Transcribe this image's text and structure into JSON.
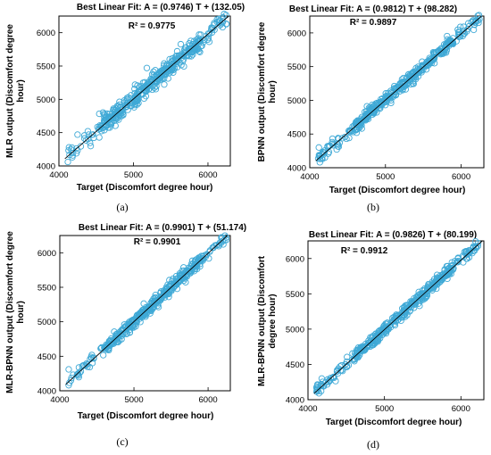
{
  "chart_data": [
    {
      "type": "scatter",
      "panel_label": "(a)",
      "title": "Best Linear Fit: A = (0.9746) T + (132.05)",
      "r2_text": "R² = 0.9775",
      "xlabel": "Target (Discomfort degree hour)",
      "ylabel_lines": [
        "MLR output (Discomfort degree",
        "hour)"
      ],
      "xlim": [
        4000,
        6300
      ],
      "ylim": [
        4000,
        6250
      ],
      "xticks": [
        4000,
        5000,
        6000
      ],
      "yticks": [
        4000,
        4500,
        5000,
        5500,
        6000
      ],
      "fit": {
        "slope": 0.9746,
        "intercept": 132.05
      },
      "noise_sd": 65,
      "seed": 11,
      "point_count": 420,
      "outliers": [
        [
          5180,
          5470
        ],
        [
          4120,
          4060
        ],
        [
          4180,
          4130
        ],
        [
          4250,
          4470
        ],
        [
          4400,
          4470
        ]
      ],
      "marker_color": "#3fa9d6",
      "line_color": "#000000"
    },
    {
      "type": "scatter",
      "panel_label": "(b)",
      "title": "Best Linear Fit: A = (0.9812) T + (98.282)",
      "r2_text": "R² = 0.9897",
      "xlabel": "Target (Discomfort degree hour)",
      "ylabel_lines": [
        "BPNN output (Discomfort degree",
        "hour)"
      ],
      "xlim": [
        4000,
        6300
      ],
      "ylim": [
        4000,
        6250
      ],
      "xticks": [
        4000,
        5000,
        6000
      ],
      "yticks": [
        4000,
        4500,
        5000,
        5500,
        6000
      ],
      "fit": {
        "slope": 0.9812,
        "intercept": 98.282
      },
      "noise_sd": 45,
      "seed": 23,
      "point_count": 420,
      "outliers": [
        [
          4120,
          4300
        ],
        [
          4200,
          4150
        ],
        [
          4300,
          4430
        ]
      ],
      "marker_color": "#3fa9d6",
      "line_color": "#000000"
    },
    {
      "type": "scatter",
      "panel_label": "(c)",
      "title": "Best Linear Fit: A = (0.9901) T + (51.174)",
      "r2_text": "R² = 0.9901",
      "xlabel": "Target (Discomfort degree hour)",
      "ylabel_lines": [
        "MLR-BPNN output (Discomfort degree",
        "hour)"
      ],
      "xlim": [
        4000,
        6300
      ],
      "ylim": [
        4000,
        6250
      ],
      "xticks": [
        4000,
        5000,
        6000
      ],
      "yticks": [
        4000,
        4500,
        5000,
        5500,
        6000
      ],
      "fit": {
        "slope": 0.9901,
        "intercept": 51.174
      },
      "noise_sd": 42,
      "seed": 37,
      "point_count": 420,
      "outliers": [
        [
          4120,
          4310
        ],
        [
          4150,
          4150
        ],
        [
          4250,
          4220
        ]
      ],
      "marker_color": "#3fa9d6",
      "line_color": "#000000"
    },
    {
      "type": "scatter",
      "panel_label": "(d)",
      "title": "Best Linear Fit: A = (0.9826) T + (80.199)",
      "r2_text": "R² = 0.9912",
      "xlabel": "Target (Discomfort degree hour)",
      "ylabel_lines": [
        "MLR-BPNN output (Discomfort",
        "degree hour)"
      ],
      "xlim": [
        4000,
        6300
      ],
      "ylim": [
        4000,
        6250
      ],
      "xticks": [
        4000,
        5000,
        6000
      ],
      "yticks": [
        4000,
        4500,
        5000,
        5500,
        6000
      ],
      "fit": {
        "slope": 0.9826,
        "intercept": 80.199
      },
      "noise_sd": 40,
      "seed": 53,
      "point_count": 420,
      "outliers": [
        [
          4180,
          4300
        ],
        [
          4200,
          4200
        ]
      ],
      "marker_color": "#3fa9d6",
      "line_color": "#000000"
    }
  ]
}
